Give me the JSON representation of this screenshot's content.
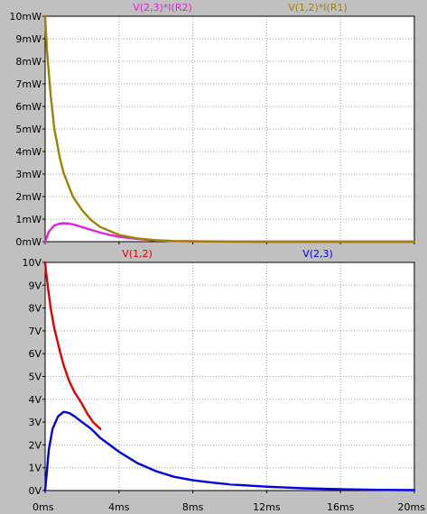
{
  "chart_data": [
    {
      "type": "line",
      "title": "",
      "xlabel": "",
      "ylabel": "",
      "xlim": [
        0,
        20
      ],
      "ylim": [
        0,
        10
      ],
      "x_unit": "ms",
      "y_unit": "mW",
      "grid": true,
      "x_ticks": [
        0,
        4,
        8,
        12,
        16,
        20
      ],
      "y_ticks": [
        0,
        1,
        2,
        3,
        4,
        5,
        6,
        7,
        8,
        9,
        10
      ],
      "y_tick_labels": [
        "0mW",
        "1mW",
        "2mW",
        "3mW",
        "4mW",
        "5mW",
        "6mW",
        "7mW",
        "8mW",
        "9mW",
        "10mW"
      ],
      "legend_placement": "top",
      "series": [
        {
          "name": "V(2,3)*I(R2)",
          "color": "#e020e0",
          "x": [
            0,
            0.2,
            0.5,
            0.8,
            1.0,
            1.3,
            1.6,
            2.0,
            2.5,
            3.0,
            3.5,
            4.0,
            5.0,
            6.0,
            7.0,
            8.0,
            10.0,
            12.0,
            16.0,
            20.0
          ],
          "values": [
            0,
            0.45,
            0.72,
            0.8,
            0.82,
            0.8,
            0.75,
            0.65,
            0.52,
            0.4,
            0.3,
            0.22,
            0.12,
            0.06,
            0.03,
            0.015,
            0.004,
            0.001,
            0,
            0
          ]
        },
        {
          "name": "V(1,2)*I(R1)",
          "color": "#a08000",
          "x": [
            0,
            0.1,
            0.3,
            0.5,
            0.8,
            1.0,
            1.5,
            2.0,
            2.5,
            3.0,
            4.0,
            5.0,
            6.0,
            7.0,
            8.0,
            10.0,
            12.0,
            16.0,
            20.0
          ],
          "values": [
            10,
            8.5,
            6.5,
            5.0,
            3.7,
            3.05,
            2.0,
            1.4,
            0.95,
            0.65,
            0.3,
            0.14,
            0.06,
            0.03,
            0.015,
            0.004,
            0.001,
            0,
            0
          ]
        }
      ]
    },
    {
      "type": "line",
      "title": "",
      "xlabel": "",
      "ylabel": "",
      "xlim": [
        0,
        20
      ],
      "ylim": [
        0,
        10
      ],
      "x_unit": "ms",
      "y_unit": "V",
      "grid": true,
      "x_ticks": [
        0,
        4,
        8,
        12,
        16,
        20
      ],
      "x_tick_labels": [
        "0ms",
        "4ms",
        "8ms",
        "12ms",
        "16ms",
        "20ms"
      ],
      "y_ticks": [
        0,
        1,
        2,
        3,
        4,
        5,
        6,
        7,
        8,
        9,
        10
      ],
      "y_tick_labels": [
        "0V",
        "1V",
        "2V",
        "3V",
        "4V",
        "5V",
        "6V",
        "7V",
        "8V",
        "9V",
        "10V"
      ],
      "legend_placement": "top",
      "series": [
        {
          "name": "V(1,2)",
          "color": "#e00000",
          "x": [
            0,
            0.05,
            0.15,
            0.3,
            0.5,
            0.8,
            1.0,
            1.3,
            1.6,
            2.0,
            2.3,
            2.6,
            3.0
          ],
          "values": [
            10,
            9.6,
            8.9,
            8.0,
            7.1,
            6.1,
            5.5,
            4.8,
            4.3,
            3.8,
            3.35,
            3.0,
            2.7
          ]
        },
        {
          "name": "V(2,3)",
          "color": "#0000e0",
          "x": [
            0,
            0.2,
            0.4,
            0.7,
            1.0,
            1.3,
            1.6,
            2.0,
            2.5,
            3.0,
            3.5,
            4.0,
            5.0,
            6.0,
            7.0,
            8.0,
            9.0,
            10.0,
            12.0,
            14.0,
            16.0,
            18.0,
            20.0
          ],
          "values": [
            0,
            1.8,
            2.7,
            3.25,
            3.45,
            3.4,
            3.25,
            3.0,
            2.7,
            2.3,
            2.0,
            1.7,
            1.2,
            0.85,
            0.6,
            0.45,
            0.35,
            0.27,
            0.17,
            0.1,
            0.06,
            0.03,
            0.02
          ]
        }
      ]
    }
  ]
}
